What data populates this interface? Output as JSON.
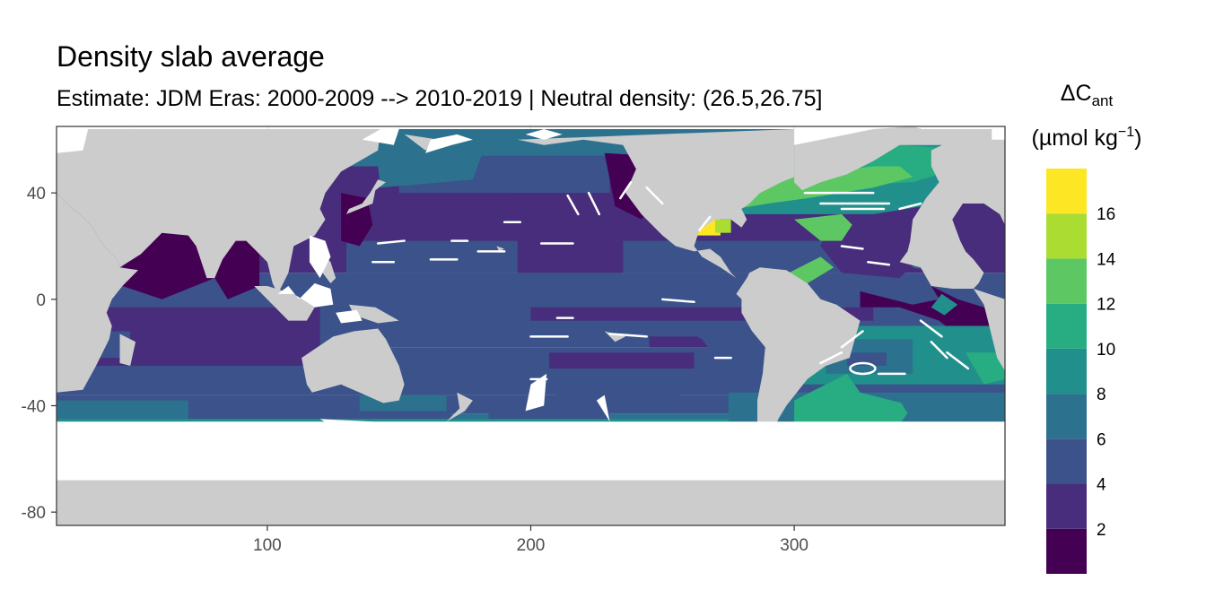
{
  "chart_data": {
    "type": "heatmap",
    "title": "Density slab average",
    "subtitle": "Estimate: JDM Eras: 2000-2009 --> 2010-2019 | Neutral density: (26.5,26.75]",
    "xlabel": "",
    "ylabel": "",
    "xlim": [
      20,
      380
    ],
    "ylim": [
      -85,
      65
    ],
    "x_ticks": [
      100,
      200,
      300
    ],
    "y_ticks": [
      40,
      0,
      -40,
      -80
    ],
    "grid": true,
    "legend": {
      "position": "right",
      "title_main": "ΔC",
      "title_sub": "ant",
      "unit_main": "(µmol kg",
      "unit_sup": "−1",
      "unit_close": ")",
      "breaks": [
        0,
        2,
        4,
        6,
        8,
        10,
        12,
        14,
        16,
        18
      ],
      "labels": [
        "2",
        "4",
        "6",
        "8",
        "10",
        "12",
        "14",
        "16"
      ],
      "colors": [
        "#440154",
        "#472D7B",
        "#3B528B",
        "#2C728E",
        "#21908C",
        "#27AD81",
        "#5DC863",
        "#AADC32",
        "#FDE725"
      ]
    },
    "colors": {
      "land": "#CCCCCC",
      "missing": "#FFFFFF",
      "panel_border": "#333333",
      "grid": "#EBEBEB"
    }
  }
}
